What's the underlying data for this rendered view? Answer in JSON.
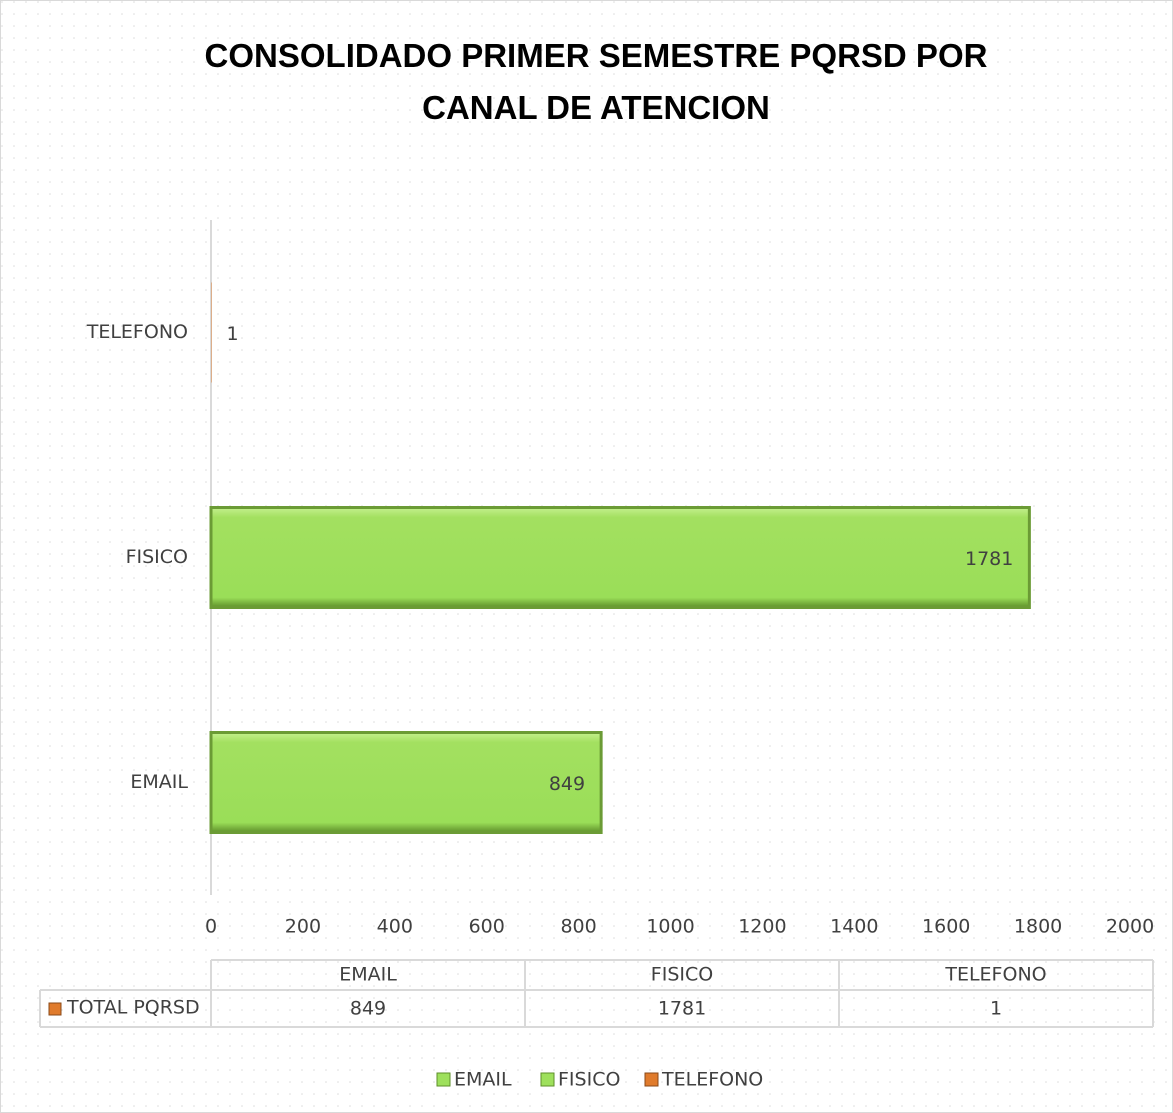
{
  "chart_data": {
    "type": "bar",
    "orientation": "horizontal",
    "title": "CONSOLIDADO PRIMER SEMESTRE PQRSD POR CANAL DE ATENCION",
    "categories": [
      "EMAIL",
      "FISICO",
      "TELEFONO"
    ],
    "series": [
      {
        "name": "TOTAL PQRSD",
        "color": "#e07b2c",
        "values": [
          849,
          1781,
          1
        ]
      }
    ],
    "colors": [
      "#9ee05c",
      "#9ee05c",
      "#e07b2c"
    ],
    "xlim": [
      0,
      2000
    ],
    "xticks": [
      0,
      200,
      400,
      600,
      800,
      1000,
      1200,
      1400,
      1600,
      1800,
      2000
    ],
    "grid": false,
    "data_table": true,
    "legend": "bottom"
  }
}
